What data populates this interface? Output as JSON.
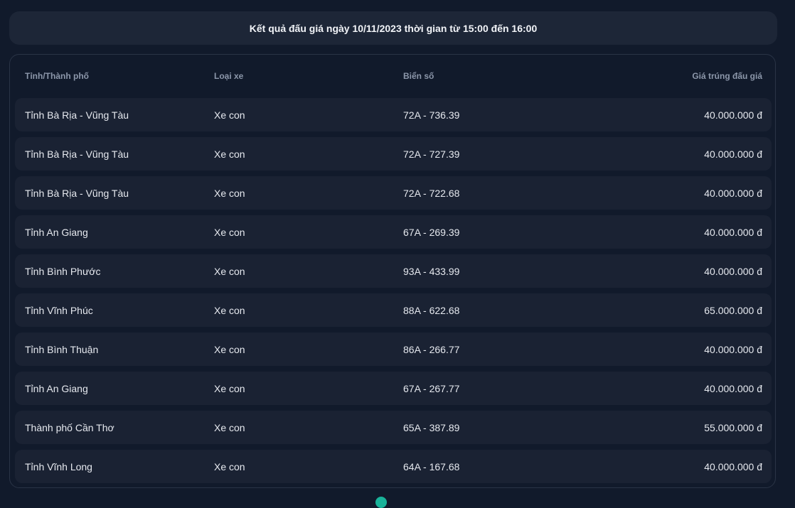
{
  "banner": {
    "title": "Kết quả đấu giá ngày 10/11/2023 thời gian từ 15:00 đến 16:00"
  },
  "table": {
    "headers": [
      "Tỉnh/Thành phố",
      "Loại xe",
      "Biển số",
      "Giá trúng đấu giá"
    ],
    "rows": [
      [
        "Tỉnh Bà Rịa - Vũng Tàu",
        "Xe con",
        "72A - 736.39",
        "40.000.000 đ"
      ],
      [
        "Tỉnh Bà Rịa - Vũng Tàu",
        "Xe con",
        "72A - 727.39",
        "40.000.000 đ"
      ],
      [
        "Tỉnh Bà Rịa - Vũng Tàu",
        "Xe con",
        "72A - 722.68",
        "40.000.000 đ"
      ],
      [
        "Tỉnh An Giang",
        "Xe con",
        "67A - 269.39",
        "40.000.000 đ"
      ],
      [
        "Tỉnh Bình Phước",
        "Xe con",
        "93A - 433.99",
        "40.000.000 đ"
      ],
      [
        "Tỉnh Vĩnh Phúc",
        "Xe con",
        "88A - 622.68",
        "65.000.000 đ"
      ],
      [
        "Tỉnh Bình Thuận",
        "Xe con",
        "86A - 266.77",
        "40.000.000 đ"
      ],
      [
        "Tỉnh An Giang",
        "Xe con",
        "67A - 267.77",
        "40.000.000 đ"
      ],
      [
        "Thành phố Cần Thơ",
        "Xe con",
        "65A - 387.89",
        "55.000.000 đ"
      ],
      [
        "Tỉnh Vĩnh Long",
        "Xe con",
        "64A - 167.68",
        "40.000.000 đ"
      ]
    ]
  },
  "colors": {
    "background": "#111a2b",
    "row": "#1a2233",
    "accent": "#19b39a"
  }
}
